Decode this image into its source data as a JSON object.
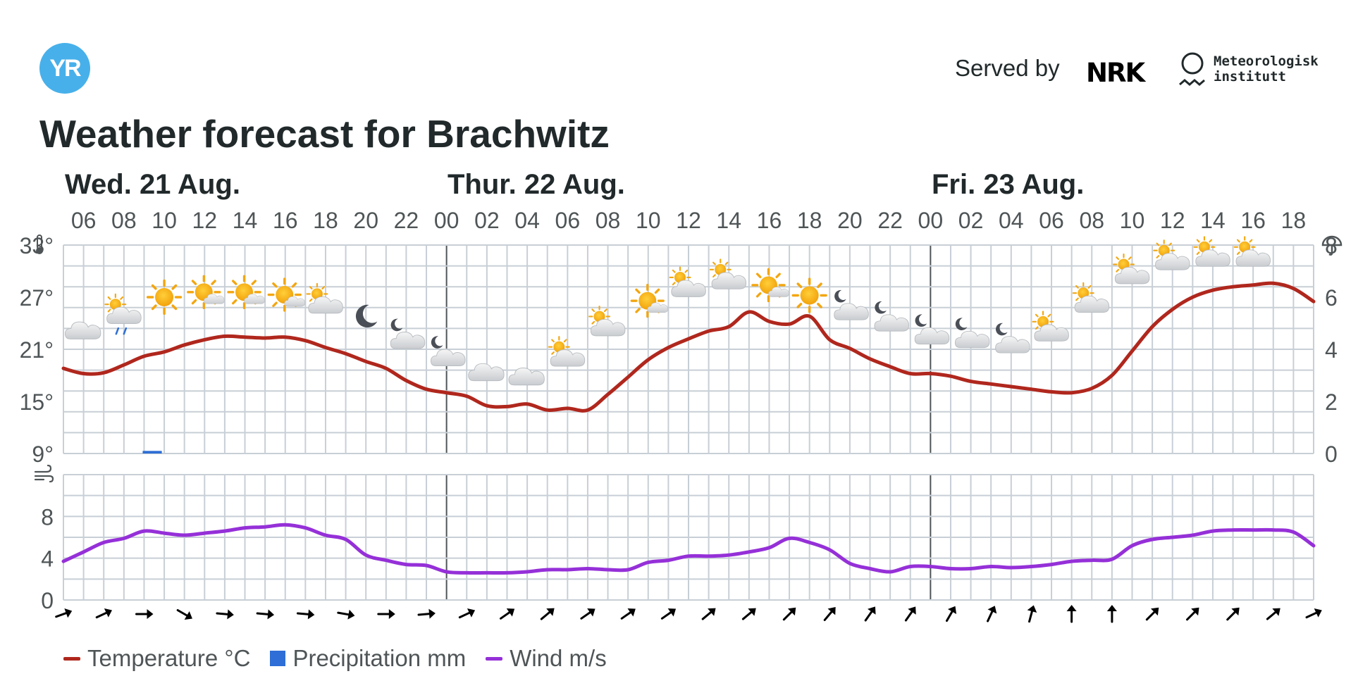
{
  "header": {
    "logo_text": "YR",
    "served_by": "Served by",
    "nrk_logo": "NRK",
    "met_logo": [
      "Meteorologisk",
      "institutt"
    ]
  },
  "title": "Weather forecast for Brachwitz",
  "legend": {
    "temperature": "Temperature °C",
    "precipitation": "Precipitation mm",
    "wind": "Wind m/s"
  },
  "colors": {
    "temperature": "#b0271d",
    "precipitation": "#2e6ed6",
    "wind": "#9530d8",
    "grid": "#c8cfd6",
    "day_divider": "#4f5557",
    "text": "#21292b",
    "axis_text": "#4f5557",
    "logo": "#47b0ea"
  },
  "chart_data": [
    {
      "type": "line",
      "x_unit": "hour",
      "x_start": "Wed. 21 Aug. 05:00",
      "x_end": "Fri. 23 Aug. 19:00",
      "days": [
        {
          "label": "Wed. 21 Aug.",
          "start_hour": 5
        },
        {
          "label": "Thur. 22 Aug.",
          "start_hour": 24
        },
        {
          "label": "Fri. 23 Aug.",
          "start_hour": 48
        }
      ],
      "x_tick_labels": [
        "06",
        "08",
        "10",
        "12",
        "14",
        "16",
        "18",
        "20",
        "22",
        "00",
        "02",
        "04",
        "06",
        "08",
        "10",
        "12",
        "14",
        "16",
        "18",
        "20",
        "22",
        "00",
        "02",
        "04",
        "06",
        "08",
        "10",
        "12",
        "14",
        "16",
        "18"
      ],
      "x_tick_hours": [
        6,
        8,
        10,
        12,
        14,
        16,
        18,
        20,
        22,
        24,
        26,
        28,
        30,
        32,
        34,
        36,
        38,
        40,
        42,
        44,
        46,
        48,
        50,
        52,
        54,
        56,
        58,
        60,
        62,
        64,
        66
      ],
      "y_left": {
        "ticks": [
          "9°",
          "15°",
          "21°",
          "27°",
          "33°"
        ],
        "values": [
          9,
          15,
          21,
          27,
          33
        ],
        "range": [
          9,
          33
        ],
        "icon": "thermometer-icon"
      },
      "y_right": {
        "ticks": [
          "0",
          "2",
          "4",
          "6",
          "8"
        ],
        "values": [
          0,
          2,
          4,
          6,
          8
        ],
        "range": [
          0,
          8
        ],
        "icon": "umbrella-icon"
      },
      "grid": true,
      "series": [
        {
          "name": "Temperature °C",
          "axis": "left",
          "hours": [
            5,
            6,
            7,
            8,
            9,
            10,
            11,
            12,
            13,
            14,
            15,
            16,
            17,
            18,
            19,
            20,
            21,
            22,
            23,
            24,
            25,
            26,
            27,
            28,
            29,
            30,
            31,
            32,
            33,
            34,
            35,
            36,
            37,
            38,
            39,
            40,
            41,
            42,
            43,
            44,
            45,
            46,
            47,
            48,
            49,
            50,
            51,
            52,
            53,
            54,
            55,
            56,
            57,
            58,
            59,
            60,
            61,
            62,
            63,
            64,
            65,
            66,
            67
          ],
          "values": [
            18.8,
            18.2,
            18.3,
            19.2,
            20.2,
            20.7,
            21.5,
            22.1,
            22.5,
            22.4,
            22.3,
            22.4,
            22.0,
            21.2,
            20.5,
            19.6,
            18.8,
            17.4,
            16.4,
            16.0,
            15.6,
            14.5,
            14.4,
            14.7,
            14.0,
            14.2,
            14.0,
            15.8,
            17.8,
            19.8,
            21.2,
            22.2,
            23.1,
            23.6,
            25.3,
            24.2,
            23.9,
            24.8,
            22.1,
            21.1,
            19.9,
            19.0,
            18.2,
            18.2,
            17.9,
            17.3,
            17.0,
            16.7,
            16.4,
            16.1,
            16.0,
            16.5,
            18.0,
            20.8,
            23.6,
            25.6,
            27.0,
            27.8,
            28.2,
            28.4,
            28.6,
            28.0,
            26.5
          ]
        },
        {
          "name": "Precipitation mm",
          "axis": "right",
          "bars": [
            {
              "hour": 9,
              "value": 0.1
            }
          ]
        }
      ],
      "weather_icons": [
        {
          "hour": 6,
          "symbol": "cloudy-icon",
          "level": 23.8
        },
        {
          "hour": 8,
          "symbol": "partly-cloudy-rain-icon",
          "level": 25.2
        },
        {
          "hour": 10,
          "symbol": "clear-sun-icon",
          "level": 27.0
        },
        {
          "hour": 12,
          "symbol": "fair-day-icon",
          "level": 27.5
        },
        {
          "hour": 14,
          "symbol": "fair-day-icon",
          "level": 27.5
        },
        {
          "hour": 16,
          "symbol": "fair-day-icon",
          "level": 27.2
        },
        {
          "hour": 18,
          "symbol": "partly-cloudy-day-icon",
          "level": 26.4
        },
        {
          "hour": 20,
          "symbol": "clear-moon-icon",
          "level": 24.8
        },
        {
          "hour": 22,
          "symbol": "partly-cloudy-night-icon",
          "level": 22.5
        },
        {
          "hour": 24,
          "symbol": "partly-cloudy-night-icon",
          "level": 20.5
        },
        {
          "hour": 26,
          "symbol": "cloudy-icon",
          "level": 19.0
        },
        {
          "hour": 28,
          "symbol": "cloudy-icon",
          "level": 18.5
        },
        {
          "hour": 30,
          "symbol": "partly-cloudy-day-icon",
          "level": 20.3
        },
        {
          "hour": 32,
          "symbol": "partly-cloudy-day-icon",
          "level": 23.8
        },
        {
          "hour": 34,
          "symbol": "fair-day-icon",
          "level": 26.5
        },
        {
          "hour": 36,
          "symbol": "partly-cloudy-day-icon",
          "level": 28.3
        },
        {
          "hour": 38,
          "symbol": "partly-cloudy-day-icon",
          "level": 29.2
        },
        {
          "hour": 40,
          "symbol": "fair-day-icon",
          "level": 28.3
        },
        {
          "hour": 42,
          "symbol": "clear-sun-icon",
          "level": 27.2
        },
        {
          "hour": 44,
          "symbol": "partly-cloudy-night-icon",
          "level": 25.8
        },
        {
          "hour": 46,
          "symbol": "partly-cloudy-night-icon",
          "level": 24.5
        },
        {
          "hour": 48,
          "symbol": "partly-cloudy-night-icon",
          "level": 23.0
        },
        {
          "hour": 50,
          "symbol": "partly-cloudy-night-icon",
          "level": 22.6
        },
        {
          "hour": 52,
          "symbol": "partly-cloudy-night-icon",
          "level": 22.0
        },
        {
          "hour": 54,
          "symbol": "partly-cloudy-day-icon",
          "level": 23.2
        },
        {
          "hour": 56,
          "symbol": "partly-cloudy-day-icon",
          "level": 26.5
        },
        {
          "hour": 58,
          "symbol": "partly-cloudy-day-icon",
          "level": 29.8
        },
        {
          "hour": 60,
          "symbol": "partly-cloudy-day-icon",
          "level": 31.4
        },
        {
          "hour": 62,
          "symbol": "partly-cloudy-day-icon",
          "level": 31.8
        },
        {
          "hour": 64,
          "symbol": "partly-cloudy-day-icon",
          "level": 31.8
        }
      ]
    },
    {
      "type": "line",
      "x_unit": "hour",
      "y_left": {
        "ticks": [
          "0",
          "4",
          "8"
        ],
        "values": [
          0,
          4,
          8
        ],
        "range": [
          0,
          12
        ],
        "icon": "wind-icon"
      },
      "grid": true,
      "series": [
        {
          "name": "Wind m/s",
          "hours": [
            5,
            6,
            7,
            8,
            9,
            10,
            11,
            12,
            13,
            14,
            15,
            16,
            17,
            18,
            19,
            20,
            21,
            22,
            23,
            24,
            25,
            26,
            27,
            28,
            29,
            30,
            31,
            32,
            33,
            34,
            35,
            36,
            37,
            38,
            39,
            40,
            41,
            42,
            43,
            44,
            45,
            46,
            47,
            48,
            49,
            50,
            51,
            52,
            53,
            54,
            55,
            56,
            57,
            58,
            59,
            60,
            61,
            62,
            63,
            64,
            65,
            66,
            67
          ],
          "values": [
            3.7,
            4.6,
            5.5,
            5.9,
            6.6,
            6.4,
            6.2,
            6.4,
            6.6,
            6.9,
            7.0,
            7.2,
            6.9,
            6.2,
            5.8,
            4.3,
            3.8,
            3.4,
            3.3,
            2.7,
            2.6,
            2.6,
            2.6,
            2.7,
            2.9,
            2.9,
            3.0,
            2.9,
            2.9,
            3.6,
            3.8,
            4.2,
            4.2,
            4.3,
            4.6,
            5.0,
            5.9,
            5.5,
            4.8,
            3.5,
            3.0,
            2.7,
            3.2,
            3.2,
            3.0,
            3.0,
            3.2,
            3.1,
            3.2,
            3.4,
            3.7,
            3.8,
            3.9,
            5.2,
            5.8,
            6.0,
            6.2,
            6.6,
            6.7,
            6.7,
            6.7,
            6.5,
            5.2
          ]
        }
      ],
      "wind_direction": {
        "hours": [
          5,
          7,
          9,
          11,
          13,
          15,
          17,
          19,
          21,
          23,
          25,
          27,
          29,
          31,
          33,
          35,
          37,
          39,
          41,
          43,
          45,
          47,
          49,
          51,
          53,
          55,
          57,
          59,
          61,
          63,
          65,
          67
        ],
        "degrees": [
          70,
          65,
          90,
          120,
          95,
          95,
          95,
          100,
          90,
          85,
          65,
          55,
          50,
          55,
          55,
          55,
          50,
          50,
          45,
          40,
          35,
          35,
          30,
          25,
          15,
          0,
          0,
          45,
          45,
          45,
          50,
          65
        ]
      }
    }
  ]
}
